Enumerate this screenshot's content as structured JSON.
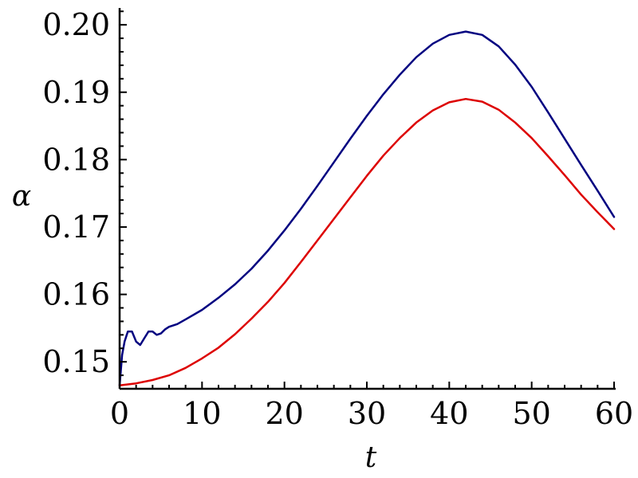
{
  "chart_data": {
    "type": "line",
    "title": "",
    "xlabel": "t",
    "ylabel": "α",
    "xlim": [
      0,
      60
    ],
    "ylim": [
      0.146,
      0.2025
    ],
    "grid": false,
    "x_ticks": [
      0,
      10,
      20,
      30,
      40,
      50,
      60
    ],
    "x_tick_labels": [
      "0",
      "10",
      "20",
      "30",
      "40",
      "50",
      "60"
    ],
    "y_ticks": [
      0.15,
      0.16,
      0.17,
      0.18,
      0.19,
      0.2
    ],
    "y_tick_labels": [
      "0.15",
      "0.16",
      "0.17",
      "0.18",
      "0.19",
      "0.20"
    ],
    "series": [
      {
        "color": "#000080",
        "x": [
          0,
          0.3,
          0.6,
          1.0,
          1.5,
          2.0,
          2.5,
          3.0,
          3.5,
          4.0,
          4.5,
          5.0,
          5.5,
          6.0,
          7.0,
          8.0,
          10,
          12,
          14,
          16,
          18,
          20,
          22,
          24,
          26,
          28,
          30,
          32,
          34,
          36,
          38,
          40,
          42,
          44,
          46,
          48,
          50,
          52,
          54,
          56,
          58,
          60
        ],
        "y": [
          0.1465,
          0.151,
          0.153,
          0.1545,
          0.1545,
          0.153,
          0.1525,
          0.1535,
          0.1545,
          0.1545,
          0.154,
          0.1542,
          0.1548,
          0.1552,
          0.1556,
          0.1563,
          0.1577,
          0.1595,
          0.1615,
          0.1638,
          0.1665,
          0.1695,
          0.1727,
          0.1761,
          0.1796,
          0.1831,
          0.1865,
          0.1897,
          0.1926,
          0.1952,
          0.1972,
          0.1985,
          0.199,
          0.1985,
          0.1968,
          0.1941,
          0.1908,
          0.187,
          0.1831,
          0.1792,
          0.1754,
          0.1715
        ]
      },
      {
        "color": "#dd0000",
        "x": [
          0,
          2,
          4,
          6,
          8,
          10,
          12,
          14,
          16,
          18,
          20,
          22,
          24,
          26,
          28,
          30,
          32,
          34,
          36,
          38,
          40,
          42,
          44,
          46,
          48,
          50,
          52,
          54,
          56,
          58,
          60
        ],
        "y": [
          0.1465,
          0.1468,
          0.1473,
          0.148,
          0.1491,
          0.1505,
          0.1521,
          0.1541,
          0.1564,
          0.1589,
          0.1617,
          0.1648,
          0.168,
          0.1712,
          0.1744,
          0.1776,
          0.1806,
          0.1832,
          0.1855,
          0.1873,
          0.1885,
          0.189,
          0.1886,
          0.1874,
          0.1855,
          0.1832,
          0.1805,
          0.1777,
          0.1748,
          0.1722,
          0.1697
        ]
      }
    ]
  }
}
